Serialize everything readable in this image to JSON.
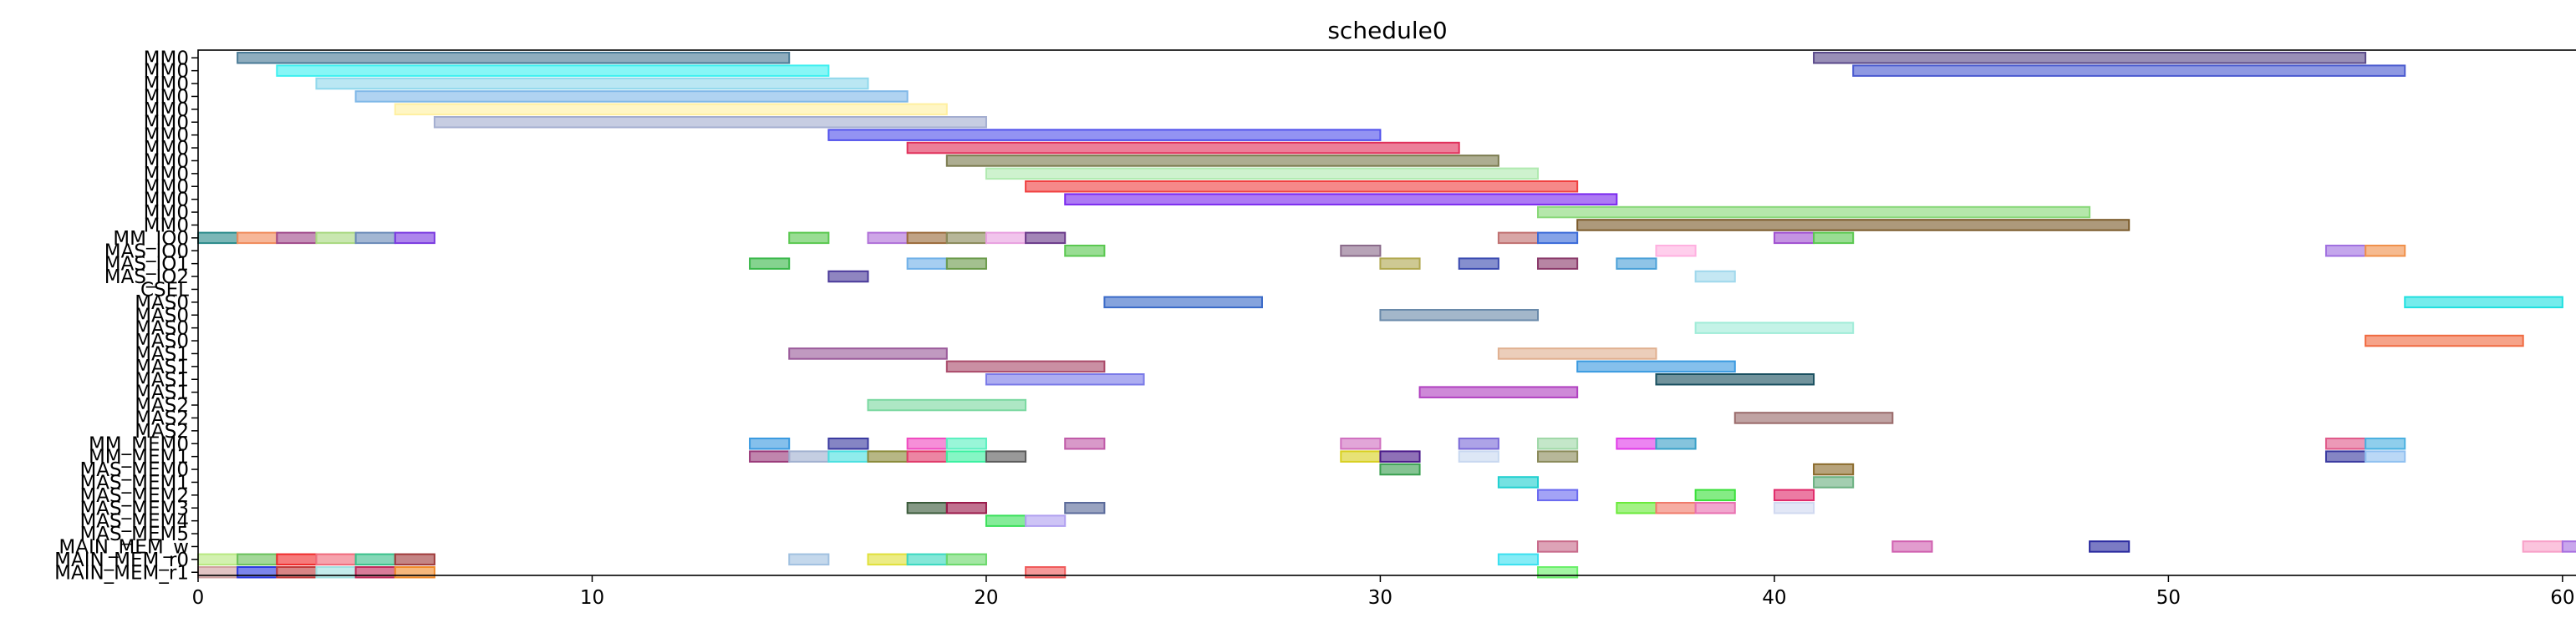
{
  "chart_data": {
    "type": "gantt",
    "title": "schedule0",
    "xlim": [
      0,
      61
    ],
    "xticks": [
      "0",
      "10",
      "20",
      "30",
      "40",
      "50",
      "60"
    ],
    "grid": false,
    "rows": [
      "MM0",
      "MM0",
      "MM0",
      "MM0",
      "MM0",
      "MM0",
      "MM0",
      "MM0",
      "MM0",
      "MM0",
      "MM0",
      "MM0",
      "MM0",
      "MM0",
      "MM_IO0",
      "MAS_IO0",
      "MAS_IO1",
      "MAS_IO2",
      "CSEL",
      "MAS0",
      "MAS0",
      "MAS0",
      "MAS0",
      "MAS1",
      "MAS1",
      "MAS1",
      "MAS1",
      "MAS2",
      "MAS2",
      "MAS2",
      "MM_MEM0",
      "MM_MEM1",
      "MAS_MEM0",
      "MAS_MEM1",
      "MAS_MEM2",
      "MAS_MEM3",
      "MAS_MEM4",
      "MAS_MEM5",
      "MAIN_MEM_w",
      "MAIN_MEM_r0",
      "MAIN_MEM_r1"
    ],
    "tasks": [
      {
        "row": 0,
        "start": 1,
        "end": 15,
        "color": "#4a7a96"
      },
      {
        "row": 0,
        "start": 41,
        "end": 55,
        "color": "#5a4a8a"
      },
      {
        "row": 1,
        "start": 2,
        "end": 16,
        "color": "#3ef0f0"
      },
      {
        "row": 1,
        "start": 42,
        "end": 56,
        "color": "#4a5ad0"
      },
      {
        "row": 2,
        "start": 3,
        "end": 17,
        "color": "#90d8ec"
      },
      {
        "row": 3,
        "start": 4,
        "end": 18,
        "color": "#80b8e8"
      },
      {
        "row": 4,
        "start": 5,
        "end": 19,
        "color": "#fff0a0"
      },
      {
        "row": 5,
        "start": 6,
        "end": 20,
        "color": "#a4aed0"
      },
      {
        "row": 6,
        "start": 16,
        "end": 30,
        "color": "#5050ec"
      },
      {
        "row": 7,
        "start": 18,
        "end": 32,
        "color": "#e0305a"
      },
      {
        "row": 8,
        "start": 19,
        "end": 33,
        "color": "#7a7a4e"
      },
      {
        "row": 9,
        "start": 20,
        "end": 34,
        "color": "#b0eab0"
      },
      {
        "row": 10,
        "start": 21,
        "end": 35,
        "color": "#f04040"
      },
      {
        "row": 11,
        "start": 22,
        "end": 36,
        "color": "#7a28ee"
      },
      {
        "row": 12,
        "start": 34,
        "end": 48,
        "color": "#88d878"
      },
      {
        "row": 13,
        "start": 35,
        "end": 49,
        "color": "#7a5a2a"
      },
      {
        "row": 14,
        "start": 0,
        "end": 1,
        "color": "#2a8a8a"
      },
      {
        "row": 14,
        "start": 1,
        "end": 2,
        "color": "#f08a5a"
      },
      {
        "row": 14,
        "start": 2,
        "end": 3,
        "color": "#a04a8a"
      },
      {
        "row": 14,
        "start": 3,
        "end": 4,
        "color": "#a8d880"
      },
      {
        "row": 14,
        "start": 4,
        "end": 5,
        "color": "#6a8ab8"
      },
      {
        "row": 14,
        "start": 5,
        "end": 6,
        "color": "#7a3ae0"
      },
      {
        "row": 14,
        "start": 15,
        "end": 16,
        "color": "#5ac850"
      },
      {
        "row": 14,
        "start": 17,
        "end": 18,
        "color": "#b070d8"
      },
      {
        "row": 14,
        "start": 18,
        "end": 19,
        "color": "#9a6a3a"
      },
      {
        "row": 14,
        "start": 19,
        "end": 20,
        "color": "#8a8a5a"
      },
      {
        "row": 14,
        "start": 20,
        "end": 21,
        "color": "#e8a0e0"
      },
      {
        "row": 14,
        "start": 21,
        "end": 22,
        "color": "#6a3a8a"
      },
      {
        "row": 14,
        "start": 33,
        "end": 34,
        "color": "#c07070"
      },
      {
        "row": 14,
        "start": 34,
        "end": 35,
        "color": "#3a6ad8"
      },
      {
        "row": 14,
        "start": 40,
        "end": 41,
        "color": "#a050d0"
      },
      {
        "row": 14,
        "start": 41,
        "end": 42,
        "color": "#5ac850"
      },
      {
        "row": 15,
        "start": 22,
        "end": 23,
        "color": "#5ac850"
      },
      {
        "row": 15,
        "start": 29,
        "end": 30,
        "color": "#8a6a8a"
      },
      {
        "row": 15,
        "start": 37,
        "end": 38,
        "color": "#ffb0e0"
      },
      {
        "row": 15,
        "start": 54,
        "end": 55,
        "color": "#a070e0"
      },
      {
        "row": 15,
        "start": 55,
        "end": 56,
        "color": "#f0904a"
      },
      {
        "row": 16,
        "start": 14,
        "end": 15,
        "color": "#3ab84a"
      },
      {
        "row": 16,
        "start": 18,
        "end": 19,
        "color": "#70b0e8"
      },
      {
        "row": 16,
        "start": 19,
        "end": 20,
        "color": "#6a9a4a"
      },
      {
        "row": 16,
        "start": 30,
        "end": 31,
        "color": "#b0a850"
      },
      {
        "row": 16,
        "start": 32,
        "end": 33,
        "color": "#3a4ab0"
      },
      {
        "row": 16,
        "start": 34,
        "end": 35,
        "color": "#8a3a6a"
      },
      {
        "row": 16,
        "start": 36,
        "end": 37,
        "color": "#4aa0d8"
      },
      {
        "row": 17,
        "start": 16,
        "end": 17,
        "color": "#4a3a9a"
      },
      {
        "row": 17,
        "start": 38,
        "end": 39,
        "color": "#a0d8ec"
      },
      {
        "row": 19,
        "start": 23,
        "end": 27,
        "color": "#3a6ac8"
      },
      {
        "row": 19,
        "start": 56,
        "end": 60,
        "color": "#20e0e0"
      },
      {
        "row": 20,
        "start": 30,
        "end": 34,
        "color": "#6a8aaa"
      },
      {
        "row": 21,
        "start": 38,
        "end": 42,
        "color": "#a0ecd8"
      },
      {
        "row": 22,
        "start": 55,
        "end": 59,
        "color": "#f06a40"
      },
      {
        "row": 23,
        "start": 15,
        "end": 19,
        "color": "#9a5a9a"
      },
      {
        "row": 23,
        "start": 33,
        "end": 37,
        "color": "#e0b090"
      },
      {
        "row": 24,
        "start": 19,
        "end": 23,
        "color": "#aa4a6a"
      },
      {
        "row": 24,
        "start": 35,
        "end": 39,
        "color": "#3a9ae0"
      },
      {
        "row": 25,
        "start": 20,
        "end": 24,
        "color": "#7a7ae8"
      },
      {
        "row": 25,
        "start": 37,
        "end": 41,
        "color": "#1a5060"
      },
      {
        "row": 26,
        "start": 31,
        "end": 35,
        "color": "#b040c0"
      },
      {
        "row": 27,
        "start": 17,
        "end": 21,
        "color": "#7ad8a0"
      },
      {
        "row": 28,
        "start": 39,
        "end": 43,
        "color": "#9a6a6a"
      },
      {
        "row": 30,
        "start": 14,
        "end": 15,
        "color": "#3a9ae0"
      },
      {
        "row": 30,
        "start": 16,
        "end": 17,
        "color": "#3a3aa0"
      },
      {
        "row": 30,
        "start": 18,
        "end": 19,
        "color": "#f04ac0"
      },
      {
        "row": 30,
        "start": 19,
        "end": 20,
        "color": "#5af0c0"
      },
      {
        "row": 30,
        "start": 22,
        "end": 23,
        "color": "#c05aa8"
      },
      {
        "row": 30,
        "start": 29,
        "end": 30,
        "color": "#d070c0"
      },
      {
        "row": 30,
        "start": 32,
        "end": 33,
        "color": "#7a6ad8"
      },
      {
        "row": 30,
        "start": 34,
        "end": 35,
        "color": "#a0d8a8"
      },
      {
        "row": 30,
        "start": 36,
        "end": 37,
        "color": "#e03ae8"
      },
      {
        "row": 30,
        "start": 37,
        "end": 38,
        "color": "#3aa0c8"
      },
      {
        "row": 30,
        "start": 54,
        "end": 55,
        "color": "#e05a8a"
      },
      {
        "row": 30,
        "start": 55,
        "end": 56,
        "color": "#4ab0e0"
      },
      {
        "row": 31,
        "start": 14,
        "end": 15,
        "color": "#9a3a7a"
      },
      {
        "row": 31,
        "start": 15,
        "end": 16,
        "color": "#a0b0d0"
      },
      {
        "row": 31,
        "start": 16,
        "end": 17,
        "color": "#4ae0e0"
      },
      {
        "row": 31,
        "start": 17,
        "end": 18,
        "color": "#8a8a3a"
      },
      {
        "row": 31,
        "start": 18,
        "end": 19,
        "color": "#e03a6a"
      },
      {
        "row": 31,
        "start": 19,
        "end": 20,
        "color": "#3af0a0"
      },
      {
        "row": 31,
        "start": 20,
        "end": 21,
        "color": "#5a5a5a"
      },
      {
        "row": 31,
        "start": 29,
        "end": 30,
        "color": "#d8d020"
      },
      {
        "row": 31,
        "start": 30,
        "end": 31,
        "color": "#4a1a8a"
      },
      {
        "row": 31,
        "start": 32,
        "end": 33,
        "color": "#c8d8f0"
      },
      {
        "row": 31,
        "start": 34,
        "end": 35,
        "color": "#8a8a5a"
      },
      {
        "row": 31,
        "start": 54,
        "end": 55,
        "color": "#3a3aa0"
      },
      {
        "row": 31,
        "start": 55,
        "end": 56,
        "color": "#90c0f0"
      },
      {
        "row": 32,
        "start": 30,
        "end": 31,
        "color": "#3aa050"
      },
      {
        "row": 32,
        "start": 41,
        "end": 42,
        "color": "#8a6a2a"
      },
      {
        "row": 33,
        "start": 33,
        "end": 34,
        "color": "#20d0d0"
      },
      {
        "row": 33,
        "start": 41,
        "end": 42,
        "color": "#6ab080"
      },
      {
        "row": 34,
        "start": 34,
        "end": 35,
        "color": "#6a6af0"
      },
      {
        "row": 34,
        "start": 38,
        "end": 39,
        "color": "#3ae03a"
      },
      {
        "row": 34,
        "start": 40,
        "end": 41,
        "color": "#e02a6a"
      },
      {
        "row": 35,
        "start": 18,
        "end": 19,
        "color": "#3a5a3a"
      },
      {
        "row": 35,
        "start": 19,
        "end": 20,
        "color": "#9a1a4a"
      },
      {
        "row": 35,
        "start": 22,
        "end": 23,
        "color": "#5a6a9a"
      },
      {
        "row": 35,
        "start": 36,
        "end": 37,
        "color": "#6aea3a"
      },
      {
        "row": 35,
        "start": 37,
        "end": 38,
        "color": "#f07a6a"
      },
      {
        "row": 35,
        "start": 38,
        "end": 39,
        "color": "#e870b0"
      },
      {
        "row": 35,
        "start": 40,
        "end": 41,
        "color": "#d0d8f0"
      },
      {
        "row": 36,
        "start": 20,
        "end": 21,
        "color": "#3ae05a"
      },
      {
        "row": 36,
        "start": 21,
        "end": 22,
        "color": "#b0a0f0"
      },
      {
        "row": 38,
        "start": 34,
        "end": 35,
        "color": "#c86a8a"
      },
      {
        "row": 38,
        "start": 43,
        "end": 44,
        "color": "#d060b0"
      },
      {
        "row": 38,
        "start": 48,
        "end": 49,
        "color": "#2a2aa0"
      },
      {
        "row": 38,
        "start": 59,
        "end": 60,
        "color": "#f8a0c8"
      },
      {
        "row": 38,
        "start": 60,
        "end": 61,
        "color": "#a870e0"
      },
      {
        "row": 39,
        "start": 0,
        "end": 1,
        "color": "#b8e880"
      },
      {
        "row": 39,
        "start": 1,
        "end": 2,
        "color": "#6ac05a"
      },
      {
        "row": 39,
        "start": 2,
        "end": 3,
        "color": "#f02a2a"
      },
      {
        "row": 39,
        "start": 3,
        "end": 4,
        "color": "#f06a7a"
      },
      {
        "row": 39,
        "start": 4,
        "end": 5,
        "color": "#3ac08a"
      },
      {
        "row": 39,
        "start": 5,
        "end": 6,
        "color": "#a03a3a"
      },
      {
        "row": 39,
        "start": 15,
        "end": 16,
        "color": "#a0c0e0"
      },
      {
        "row": 39,
        "start": 17,
        "end": 18,
        "color": "#e0e03a"
      },
      {
        "row": 39,
        "start": 18,
        "end": 19,
        "color": "#3ad8c0"
      },
      {
        "row": 39,
        "start": 19,
        "end": 20,
        "color": "#6ad86a"
      },
      {
        "row": 39,
        "start": 33,
        "end": 34,
        "color": "#3ae0f0"
      },
      {
        "row": 40,
        "start": 0,
        "end": 1,
        "color": "#d0a0a0"
      },
      {
        "row": 40,
        "start": 1,
        "end": 2,
        "color": "#2a3ae0"
      },
      {
        "row": 40,
        "start": 2,
        "end": 3,
        "color": "#c03a3a"
      },
      {
        "row": 40,
        "start": 3,
        "end": 4,
        "color": "#a0e0e0"
      },
      {
        "row": 40,
        "start": 4,
        "end": 5,
        "color": "#c02a5a"
      },
      {
        "row": 40,
        "start": 5,
        "end": 6,
        "color": "#f08a2a"
      },
      {
        "row": 40,
        "start": 21,
        "end": 22,
        "color": "#f05a5a"
      },
      {
        "row": 40,
        "start": 34,
        "end": 35,
        "color": "#6af06a"
      }
    ]
  }
}
